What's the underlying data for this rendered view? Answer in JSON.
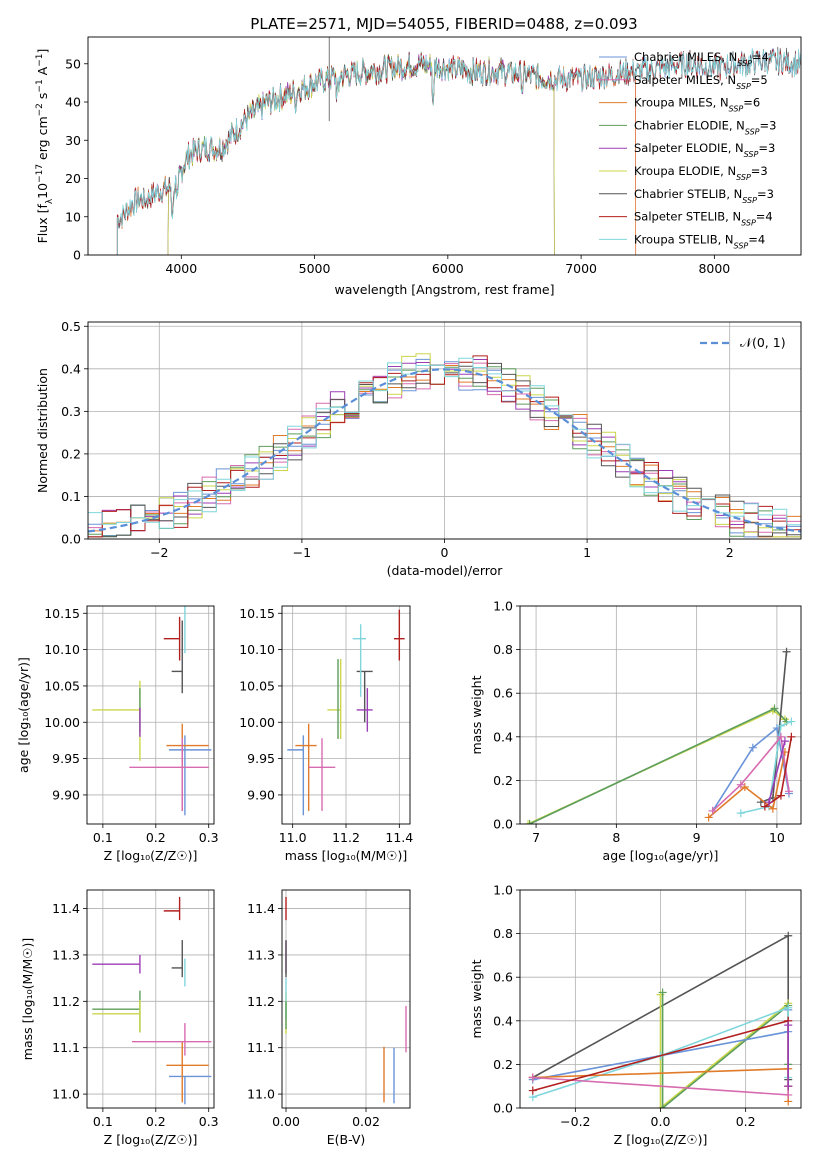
{
  "figure_title": "PLATE=2571, MJD=54055, FIBERID=0488, z=0.093",
  "chart_data": [
    {
      "type": "line",
      "name": "spectrum",
      "title": "PLATE=2571, MJD=54055, FIBERID=0488, z=0.093",
      "xlabel": "wavelength [Angstrom, rest frame]",
      "ylabel_parts": [
        "Flux [f",
        "λ",
        "10",
        "−17",
        " erg cm",
        "−2",
        " s",
        "−1",
        " A",
        "−1",
        "]"
      ],
      "xlim": [
        3300,
        8650
      ],
      "ylim": [
        0,
        57
      ],
      "xticks": [
        4000,
        5000,
        6000,
        7000,
        8000
      ],
      "yticks": [
        0,
        10,
        20,
        30,
        40,
        50
      ],
      "grid": false,
      "legend_position": "top-right",
      "continuum_x": [
        3550,
        3650,
        3750,
        3850,
        3950,
        4050,
        4150,
        4300,
        4400,
        4500,
        4650,
        4800,
        5000,
        5200,
        5400,
        5600,
        5800,
        6000,
        6200,
        6400,
        6600,
        6800,
        7000,
        7200,
        7400,
        7600,
        7800,
        8000,
        8200,
        8400,
        8650
      ],
      "continuum_y": [
        10,
        14,
        15,
        17,
        18,
        26,
        28,
        28,
        32,
        36,
        40,
        42,
        45,
        47,
        48,
        49,
        50,
        49,
        48,
        48,
        47,
        46,
        46,
        47,
        48,
        49,
        50,
        49,
        50,
        51,
        50
      ],
      "series": [
        {
          "name": "Chabrier MILES",
          "nssp": "4",
          "color": "#6a93d8",
          "cut_start": 3520,
          "cut_end": null
        },
        {
          "name": "Salpeter MILES",
          "nssp": "5",
          "color": "#d76bb0",
          "cut_start": 3520,
          "cut_end": 7410
        },
        {
          "name": "Kroupa MILES",
          "nssp": "6",
          "color": "#e07b2a",
          "cut_start": 3520,
          "cut_end": 7410
        },
        {
          "name": "Chabrier ELODIE",
          "nssp": "3",
          "color": "#5e9e5e",
          "cut_start": 3900,
          "cut_end": 6800
        },
        {
          "name": "Salpeter ELODIE",
          "nssp": "3",
          "color": "#9b3db5",
          "cut_start": 3900,
          "cut_end": 6800
        },
        {
          "name": "Kroupa ELODIE",
          "nssp": "3",
          "color": "#cbd64a",
          "cut_start": 3900,
          "cut_end": 6800
        },
        {
          "name": "Chabrier STELIB",
          "nssp": "3",
          "color": "#555555",
          "cut_start": 3520,
          "cut_end": null
        },
        {
          "name": "Salpeter STELIB",
          "nssp": "4",
          "color": "#b21f1f",
          "cut_start": 3520,
          "cut_end": null
        },
        {
          "name": "Kroupa STELIB",
          "nssp": "4",
          "color": "#7fd6dc",
          "cut_start": 3520,
          "cut_end": null
        }
      ],
      "legend_nssp_sub": "SSP"
    },
    {
      "type": "line",
      "name": "residual-histogram",
      "xlabel": "(data-model)/error",
      "ylabel": "Normed distribution",
      "xlim": [
        -2.5,
        2.5
      ],
      "ylim": [
        0,
        0.51
      ],
      "xticks": [
        -2,
        -1,
        0,
        1,
        2
      ],
      "xtick_labels": [
        "−2",
        "−1",
        "0",
        "1",
        "2"
      ],
      "yticks": [
        0.0,
        0.1,
        0.2,
        0.3,
        0.4,
        0.5
      ],
      "ytick_labels": [
        "0.0",
        "0.1",
        "0.2",
        "0.3",
        "0.4",
        "0.5"
      ],
      "grid": true,
      "legend_label": "𝒩(0, 1)",
      "legend_position": "top-right",
      "bin_width": 0.1,
      "reference": {
        "mean": 0,
        "sigma": 1,
        "color": "#5a8fd8"
      }
    },
    {
      "type": "scatter",
      "name": "age-vs-metallicity",
      "xlabel": "Z [log₁₀(Z/Z☉)]",
      "ylabel": "age  [log₁₀(age/yr)]",
      "xlim": [
        0.07,
        0.31
      ],
      "ylim": [
        9.86,
        10.16
      ],
      "xticks": [
        0.1,
        0.2,
        0.3
      ],
      "xtick_labels": [
        "0.1",
        "0.2",
        "0.3"
      ],
      "yticks": [
        9.9,
        9.95,
        10.0,
        10.05,
        10.1,
        10.15
      ],
      "ytick_labels": [
        "9.90",
        "9.95",
        "10.00",
        "10.05",
        "10.10",
        "10.15"
      ],
      "grid": true,
      "points": [
        {
          "x": 0.245,
          "xerr": [
            0.03,
            0.0
          ],
          "y": 10.115,
          "yerr": [
            0.03,
            0.03
          ],
          "color": "#b21f1f"
        },
        {
          "x": 0.25,
          "xerr": [
            0.02,
            0.0
          ],
          "y": 10.07,
          "yerr": [
            0.03,
            0.07
          ],
          "color": "#555555"
        },
        {
          "x": 0.255,
          "xerr": [
            0.0,
            0.0
          ],
          "y": 10.115,
          "yerr": [
            0.02,
            0.07
          ],
          "color": "#7fd6dc"
        },
        {
          "x": 0.17,
          "xerr": [
            0.09,
            0.0
          ],
          "y": 10.017,
          "yerr": [
            0.07,
            0.04
          ],
          "color": "#cbd64a"
        },
        {
          "x": 0.17,
          "xerr": [
            0.0,
            0.0
          ],
          "y": 10.017,
          "yerr": [
            0.03,
            0.03
          ],
          "color": "#5e9e5e"
        },
        {
          "x": 0.17,
          "xerr": [
            0.0,
            0.0
          ],
          "y": 10.0,
          "yerr": [
            0.02,
            0.02
          ],
          "color": "#9b3db5"
        },
        {
          "x": 0.255,
          "xerr": [
            0.03,
            0.05
          ],
          "y": 9.962,
          "yerr": [
            0.09,
            0.02
          ],
          "color": "#6a93d8"
        },
        {
          "x": 0.25,
          "xerr": [
            0.03,
            0.05
          ],
          "y": 9.968,
          "yerr": [
            0.09,
            0.03
          ],
          "color": "#e07b2a"
        },
        {
          "x": 0.25,
          "xerr": [
            0.1,
            0.05
          ],
          "y": 9.938,
          "yerr": [
            0.06,
            0.04
          ],
          "color": "#d76bb0"
        }
      ]
    },
    {
      "type": "scatter",
      "name": "age-vs-mass",
      "xlabel": "mass [log₁₀(M/M☉)]",
      "xlim": [
        10.96,
        11.44
      ],
      "ylim": [
        9.86,
        10.16
      ],
      "xticks": [
        11.0,
        11.2,
        11.4
      ],
      "xtick_labels": [
        "11.0",
        "11.2",
        "11.4"
      ],
      "yticks": [
        9.9,
        9.95,
        10.0,
        10.05,
        10.1,
        10.15
      ],
      "ytick_labels": [
        "9.90",
        "9.95",
        "10.00",
        "10.05",
        "10.10",
        "10.15"
      ],
      "grid": true,
      "points": [
        {
          "x": 11.4,
          "xerr": [
            0.02,
            0.02
          ],
          "y": 10.115,
          "yerr": [
            0.03,
            0.04
          ],
          "color": "#b21f1f"
        },
        {
          "x": 11.27,
          "xerr": [
            0.03,
            0.03
          ],
          "y": 10.07,
          "yerr": [
            0.07,
            0.0
          ],
          "color": "#555555"
        },
        {
          "x": 11.255,
          "xerr": [
            0.03,
            0.02
          ],
          "y": 10.115,
          "yerr": [
            0.08,
            0.02
          ],
          "color": "#7fd6dc"
        },
        {
          "x": 11.18,
          "xerr": [
            0.05,
            0.0
          ],
          "y": 10.017,
          "yerr": [
            0.04,
            0.07
          ],
          "color": "#cbd64a"
        },
        {
          "x": 11.17,
          "xerr": [
            0.0,
            0.0
          ],
          "y": 10.017,
          "yerr": [
            0.04,
            0.07
          ],
          "color": "#5e9e5e"
        },
        {
          "x": 11.28,
          "xerr": [
            0.04,
            0.02
          ],
          "y": 10.017,
          "yerr": [
            0.03,
            0.03
          ],
          "color": "#9b3db5"
        },
        {
          "x": 11.04,
          "xerr": [
            0.06,
            0.0
          ],
          "y": 9.962,
          "yerr": [
            0.09,
            0.02
          ],
          "color": "#6a93d8"
        },
        {
          "x": 11.06,
          "xerr": [
            0.05,
            0.03
          ],
          "y": 9.968,
          "yerr": [
            0.09,
            0.03
          ],
          "color": "#e07b2a"
        },
        {
          "x": 11.11,
          "xerr": [
            0.05,
            0.05
          ],
          "y": 9.938,
          "yerr": [
            0.06,
            0.04
          ],
          "color": "#d76bb0"
        }
      ]
    },
    {
      "type": "line",
      "name": "mass-weight-vs-age",
      "xlabel": "age  [log₁₀(age/yr)]",
      "ylabel": "mass weight",
      "xlim": [
        6.8,
        10.3
      ],
      "ylim": [
        0,
        1.0
      ],
      "xticks": [
        7,
        8,
        9,
        10
      ],
      "xtick_labels": [
        "7",
        "8",
        "9",
        "10"
      ],
      "yticks": [
        0,
        0.2,
        0.4,
        0.6,
        0.8,
        1.0
      ],
      "ytick_labels": [
        "0.0",
        "0.2",
        "0.4",
        "0.6",
        "0.8",
        "1.0"
      ],
      "grid": true,
      "series": [
        {
          "color": "#cbd64a",
          "x": [
            6.9,
            9.95,
            10.1
          ],
          "y": [
            0.0,
            0.52,
            0.48
          ]
        },
        {
          "color": "#5e9e5e",
          "x": [
            6.92,
            9.97,
            10.12
          ],
          "y": [
            0.0,
            0.53,
            0.47
          ]
        },
        {
          "color": "#555555",
          "x": [
            9.8,
            9.95,
            10.12
          ],
          "y": [
            0.1,
            0.12,
            0.79
          ]
        },
        {
          "color": "#6a93d8",
          "x": [
            9.2,
            9.7,
            10.0,
            10.15
          ],
          "y": [
            0.06,
            0.35,
            0.44,
            0.14
          ]
        },
        {
          "color": "#7fd6dc",
          "x": [
            9.55,
            9.9,
            10.05,
            10.18
          ],
          "y": [
            0.05,
            0.08,
            0.45,
            0.47
          ]
        },
        {
          "color": "#e07b2a",
          "x": [
            9.15,
            9.6,
            9.95,
            10.1
          ],
          "y": [
            0.03,
            0.17,
            0.07,
            0.33
          ]
        },
        {
          "color": "#d76bb0",
          "x": [
            9.2,
            9.55,
            10.05,
            10.15
          ],
          "y": [
            0.06,
            0.18,
            0.4,
            0.15
          ]
        },
        {
          "color": "#b21f1f",
          "x": [
            9.85,
            10.05,
            10.18
          ],
          "y": [
            0.08,
            0.13,
            0.4
          ]
        },
        {
          "color": "#9b3db5",
          "x": [
            9.9,
            10.1
          ],
          "y": [
            0.1,
            0.38
          ]
        }
      ]
    },
    {
      "type": "scatter",
      "name": "mass-vs-metallicity",
      "xlabel": "Z [log₁₀(Z/Z☉)]",
      "ylabel": "mass [log₁₀(M/M☉)]",
      "xlim": [
        0.07,
        0.31
      ],
      "ylim": [
        10.97,
        11.44
      ],
      "xticks": [
        0.1,
        0.2,
        0.3
      ],
      "xtick_labels": [
        "0.1",
        "0.2",
        "0.3"
      ],
      "yticks": [
        11.0,
        11.1,
        11.2,
        11.3,
        11.4
      ],
      "ytick_labels": [
        "11.0",
        "11.1",
        "11.2",
        "11.3",
        "11.4"
      ],
      "grid": true,
      "points": [
        {
          "x": 0.245,
          "xerr": [
            0.03,
            0.0
          ],
          "y": 11.395,
          "yerr": [
            0.02,
            0.03
          ],
          "color": "#b21f1f"
        },
        {
          "x": 0.25,
          "xerr": [
            0.02,
            0.0
          ],
          "y": 11.272,
          "yerr": [
            0.02,
            0.06
          ],
          "color": "#555555"
        },
        {
          "x": 0.255,
          "xerr": [
            0.0,
            0.0
          ],
          "y": 11.272,
          "yerr": [
            0.04,
            0.02
          ],
          "color": "#7fd6dc"
        },
        {
          "x": 0.17,
          "xerr": [
            0.09,
            0.0
          ],
          "y": 11.183,
          "yerr": [
            0.05,
            0.04
          ],
          "color": "#5e9e5e"
        },
        {
          "x": 0.17,
          "xerr": [
            0.09,
            0.0
          ],
          "y": 11.173,
          "yerr": [
            0.04,
            0.03
          ],
          "color": "#cbd64a"
        },
        {
          "x": 0.17,
          "xerr": [
            0.09,
            0.0
          ],
          "y": 11.28,
          "yerr": [
            0.02,
            0.02
          ],
          "color": "#9b3db5"
        },
        {
          "x": 0.255,
          "xerr": [
            0.03,
            0.05
          ],
          "y": 11.038,
          "yerr": [
            0.06,
            0.0
          ],
          "color": "#6a93d8"
        },
        {
          "x": 0.25,
          "xerr": [
            0.03,
            0.05
          ],
          "y": 11.062,
          "yerr": [
            0.08,
            0.05
          ],
          "color": "#e07b2a"
        },
        {
          "x": 0.255,
          "xerr": [
            0.1,
            0.05
          ],
          "y": 11.113,
          "yerr": [
            0.03,
            0.04
          ],
          "color": "#d76bb0"
        }
      ]
    },
    {
      "type": "scatter",
      "name": "mass-vs-extinction",
      "xlabel": "E(B-V)",
      "xlim": [
        -0.001,
        0.031
      ],
      "ylim": [
        10.97,
        11.44
      ],
      "xticks": [
        0.0,
        0.02
      ],
      "xtick_labels": [
        "0.00",
        "0.02"
      ],
      "yticks": [
        11.0,
        11.1,
        11.2,
        11.3,
        11.4
      ],
      "ytick_labels": [
        "11.0",
        "11.1",
        "11.2",
        "11.3",
        "11.4"
      ],
      "grid": true,
      "points": [
        {
          "x": 0.0,
          "y": 11.395,
          "yerr": [
            0.02,
            0.03
          ],
          "color": "#b21f1f"
        },
        {
          "x": 0.0,
          "y": 11.28,
          "yerr": [
            0.02,
            0.05
          ],
          "color": "#9b3db5"
        },
        {
          "x": 0.0,
          "y": 11.272,
          "yerr": [
            0.02,
            0.06
          ],
          "color": "#555555"
        },
        {
          "x": 0.0,
          "y": 11.18,
          "yerr": [
            0.05,
            0.04
          ],
          "color": "#cbd64a"
        },
        {
          "x": 0.0,
          "y": 11.2,
          "yerr": [
            0.04,
            0.05
          ],
          "color": "#7fd6dc"
        },
        {
          "x": 0.0,
          "y": 11.17,
          "yerr": [
            0.03,
            0.03
          ],
          "color": "#5e9e5e"
        },
        {
          "x": 0.0245,
          "y": 11.062,
          "yerr": [
            0.08,
            0.04
          ],
          "color": "#e07b2a"
        },
        {
          "x": 0.027,
          "y": 11.04,
          "yerr": [
            0.06,
            0.06
          ],
          "color": "#6a93d8"
        },
        {
          "x": 0.03,
          "y": 11.13,
          "yerr": [
            0.04,
            0.06
          ],
          "color": "#d76bb0"
        }
      ]
    },
    {
      "type": "line",
      "name": "mass-weight-vs-metallicity",
      "xlabel": "Z [log₁₀(Z/Z☉)]",
      "ylabel": "mass weight",
      "xlim": [
        -0.33,
        0.33
      ],
      "ylim": [
        0,
        1.0
      ],
      "xticks": [
        -0.2,
        0.0,
        0.2
      ],
      "xtick_labels": [
        "−0.2",
        "0.0",
        "0.2"
      ],
      "yticks": [
        0,
        0.2,
        0.4,
        0.6,
        0.8,
        1.0
      ],
      "ytick_labels": [
        "0.0",
        "0.2",
        "0.4",
        "0.6",
        "0.8",
        "1.0"
      ],
      "grid": true,
      "series": [
        {
          "color": "#555555",
          "x": [
            -0.3,
            0.3,
            0.3
          ],
          "y": [
            0.14,
            0.79,
            0.13
          ]
        },
        {
          "color": "#cbd64a",
          "x": [
            0.0,
            0.0,
            0.3,
            0.3
          ],
          "y": [
            0.52,
            0.0,
            0.48,
            0.1
          ]
        },
        {
          "color": "#5e9e5e",
          "x": [
            0.005,
            0.005,
            0.3,
            0.3
          ],
          "y": [
            0.53,
            0.0,
            0.47,
            0.2
          ]
        },
        {
          "color": "#6a93d8",
          "x": [
            -0.3,
            0.0,
            0.3,
            0.3
          ],
          "y": [
            0.13,
            0.24,
            0.35,
            0.45
          ]
        },
        {
          "color": "#7fd6dc",
          "x": [
            -0.3,
            0.0,
            0.3,
            0.3
          ],
          "y": [
            0.05,
            0.24,
            0.46,
            0.14
          ]
        },
        {
          "color": "#e07b2a",
          "x": [
            -0.3,
            0.3,
            0.3
          ],
          "y": [
            0.14,
            0.18,
            0.03
          ]
        },
        {
          "color": "#d76bb0",
          "x": [
            -0.3,
            0.3,
            0.3
          ],
          "y": [
            0.14,
            0.06,
            0.4
          ]
        },
        {
          "color": "#b21f1f",
          "x": [
            -0.3,
            0.3,
            0.3
          ],
          "y": [
            0.08,
            0.4,
            0.1
          ]
        },
        {
          "color": "#9b3db5",
          "x": [
            0.3,
            0.3
          ],
          "y": [
            0.38,
            0.1
          ]
        }
      ]
    }
  ]
}
